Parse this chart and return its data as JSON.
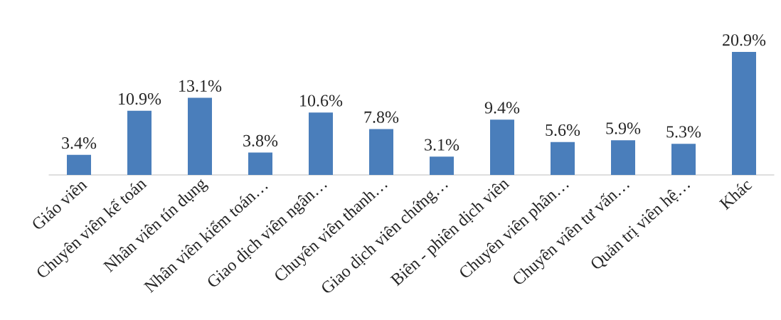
{
  "chart_data": {
    "type": "bar",
    "categories": [
      "Giáo viên",
      "Chuyên viên kế toán",
      "Nhân viên tín dụng",
      "Nhân viên kiểm toán…",
      "Giao dịch viên ngân…",
      "Chuyên viên thanh…",
      "Giao dịch viên chứng…",
      "Biên - phiên dịch viên",
      "Chuyên viên phân…",
      "Chuyên viên tư vấn…",
      "Quản trị viên hệ…",
      "Khác"
    ],
    "values": [
      3.4,
      10.9,
      13.1,
      3.8,
      10.6,
      7.8,
      3.1,
      9.4,
      5.6,
      5.9,
      5.3,
      20.9
    ],
    "value_labels": [
      "3.4%",
      "10.9%",
      "13.1%",
      "3.8%",
      "10.6%",
      "7.8%",
      "3.1%",
      "9.4%",
      "5.6%",
      "5.9%",
      "5.3%",
      "20.9%"
    ],
    "color": "#4a7ebb"
  }
}
